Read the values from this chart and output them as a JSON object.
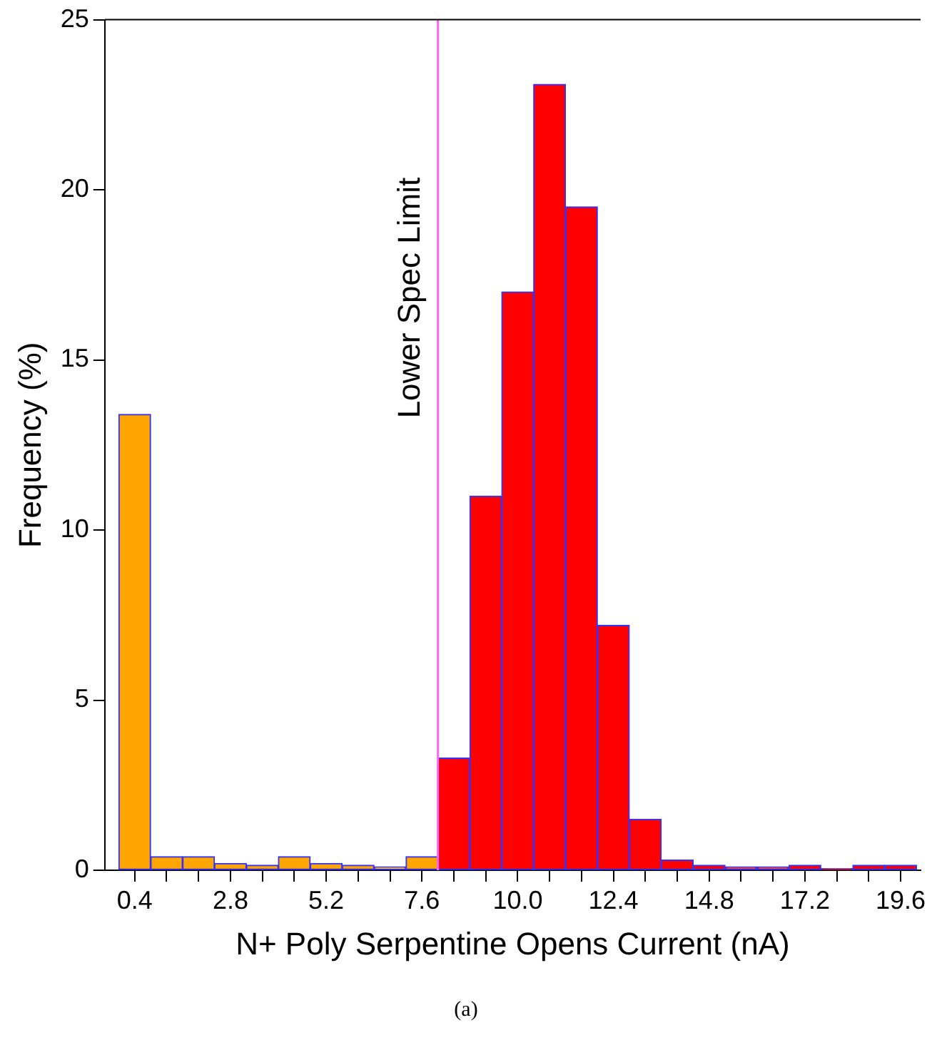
{
  "chart_data": {
    "type": "histogram",
    "xlabel": "N+ Poly Serpentine Opens Current (nA)",
    "ylabel": "Frequency (%)",
    "bins": [
      0,
      0.8,
      1.6,
      2.4,
      3.2,
      4.0,
      4.8,
      5.6,
      6.4,
      7.2,
      8.0,
      8.8,
      9.6,
      10.4,
      11.2,
      12.0,
      12.8,
      13.6,
      14.4,
      15.2,
      16.0,
      16.8,
      17.6,
      18.4,
      19.2,
      20.0
    ],
    "values": [
      13.4,
      0.4,
      0.4,
      0.2,
      0.15,
      0.4,
      0.2,
      0.15,
      0.1,
      0.4,
      3.3,
      11.0,
      17.0,
      23.1,
      19.5,
      7.2,
      1.5,
      0.3,
      0.15,
      0.1,
      0.1,
      0.15,
      0.05,
      0.15,
      0.15
    ],
    "colors": [
      "#ffa500",
      "#ffa500",
      "#ffa500",
      "#ffa500",
      "#ffa500",
      "#ffa500",
      "#ffa500",
      "#ffa500",
      "#ffa500",
      "#ffa500",
      "#ff0000",
      "#ff0000",
      "#ff0000",
      "#ff0000",
      "#ff0000",
      "#ff0000",
      "#ff0000",
      "#ff0000",
      "#ff0000",
      "#ff0000",
      "#ff0000",
      "#ff0000",
      "#ff0000",
      "#ff0000",
      "#ff0000"
    ],
    "xlim": [
      -0.35,
      20.1
    ],
    "ylim": [
      0,
      25
    ],
    "xticks": [
      0.4,
      {
        "value": 1.2,
        "label": null
      },
      {
        "value": 2.0,
        "label": null
      },
      2.8,
      {
        "value": 3.6,
        "label": null
      },
      {
        "value": 4.4,
        "label": null
      },
      5.2,
      {
        "value": 6.0,
        "label": null
      },
      {
        "value": 6.8,
        "label": null
      },
      7.6,
      {
        "value": 8.4,
        "label": null
      },
      {
        "value": 9.2,
        "label": null
      },
      {
        "value": 10.0,
        "label": "10.0"
      },
      {
        "value": 10.8,
        "label": null
      },
      {
        "value": 11.6,
        "label": null
      },
      12.4,
      {
        "value": 13.2,
        "label": null
      },
      {
        "value": 14.0,
        "label": null
      },
      14.8,
      {
        "value": 15.6,
        "label": null
      },
      {
        "value": 16.4,
        "label": null
      },
      17.2,
      {
        "value": 18.0,
        "label": null
      },
      {
        "value": 18.8,
        "label": null
      },
      19.6
    ],
    "yticks": [
      0,
      5,
      10,
      15,
      20,
      25
    ],
    "ref_lines": [
      {
        "axis": "x",
        "value": 8.0,
        "label": "Lower Spec Limit",
        "color": "#ff66ff"
      }
    ],
    "annotations": [
      "(a)"
    ],
    "grid": false,
    "legend": false
  }
}
